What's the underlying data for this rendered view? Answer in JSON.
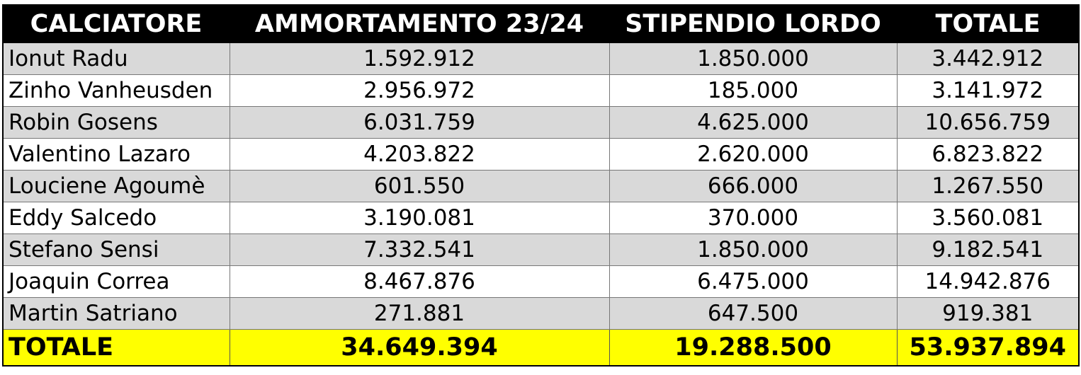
{
  "headers": {
    "player": "CALCIATORE",
    "amortization": "AMMORTAMENTO 23/24",
    "gross_salary": "STIPENDIO LORDO",
    "total": "TOTALE"
  },
  "rows": [
    {
      "player": "Ionut Radu",
      "amortization": "1.592.912",
      "gross_salary": "1.850.000",
      "total": "3.442.912"
    },
    {
      "player": "Zinho Vanheusden",
      "amortization": "2.956.972",
      "gross_salary": "185.000",
      "total": "3.141.972"
    },
    {
      "player": "Robin Gosens",
      "amortization": "6.031.759",
      "gross_salary": "4.625.000",
      "total": "10.656.759"
    },
    {
      "player": "Valentino Lazaro",
      "amortization": "4.203.822",
      "gross_salary": "2.620.000",
      "total": "6.823.822"
    },
    {
      "player": "Louciene Agoumè",
      "amortization": "601.550",
      "gross_salary": "666.000",
      "total": "1.267.550"
    },
    {
      "player": "Eddy Salcedo",
      "amortization": "3.190.081",
      "gross_salary": "370.000",
      "total": "3.560.081"
    },
    {
      "player": "Stefano Sensi",
      "amortization": "7.332.541",
      "gross_salary": "1.850.000",
      "total": "9.182.541"
    },
    {
      "player": "Joaquin Correa",
      "amortization": "8.467.876",
      "gross_salary": "6.475.000",
      "total": "14.942.876"
    },
    {
      "player": "Martin Satriano",
      "amortization": "271.881",
      "gross_salary": "647.500",
      "total": "919.381"
    }
  ],
  "totals": {
    "label": "TOTALE",
    "amortization": "34.649.394",
    "gross_salary": "19.288.500",
    "total": "53.937.894"
  },
  "colors": {
    "header_bg": "#000000",
    "header_text": "#ffffff",
    "row_alt_bg": "#d9d9d9",
    "row_bg": "#ffffff",
    "total_bg": "#ffff00"
  }
}
